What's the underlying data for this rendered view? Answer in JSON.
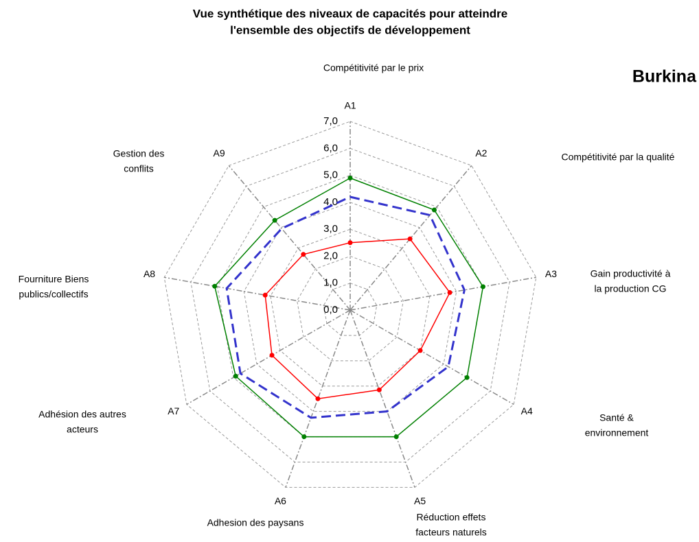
{
  "chart_data": {
    "type": "radar",
    "title": [
      "Vue synthétique des niveaux de capacités pour atteindre",
      "l'ensemble des objectifs de développement"
    ],
    "label": "Burkina",
    "categories": [
      "A1",
      "A2",
      "A3",
      "A4",
      "A5",
      "A6",
      "A7",
      "A8",
      "A9"
    ],
    "axis_titles": [
      [
        "Compétitivité  par le prix"
      ],
      [
        "Compétitivité par la qualité"
      ],
      [
        "Gain productivité à",
        "la production CG"
      ],
      [
        "Santé &",
        "environnement"
      ],
      [
        "Réduction effets",
        "facteurs naturels"
      ],
      [
        "Adhesion des paysans"
      ],
      [
        "Adhésion des autres",
        "acteurs"
      ],
      [
        "Fourniture Biens",
        "publics/collectifs"
      ],
      [
        "Gestion des",
        "conflits"
      ]
    ],
    "ylim": [
      0,
      7
    ],
    "yticks": [
      {
        "value": 0,
        "label": "0,0"
      },
      {
        "value": 1,
        "label": "1,0"
      },
      {
        "value": 2,
        "label": "2,0"
      },
      {
        "value": 3,
        "label": "3,0"
      },
      {
        "value": 4,
        "label": "4,0"
      },
      {
        "value": 5,
        "label": "5,0"
      },
      {
        "value": 6,
        "label": "6,0"
      },
      {
        "value": 7,
        "label": "7,0"
      }
    ],
    "grid": true,
    "series": [
      {
        "color": "#008000",
        "style": "solid",
        "markers": true,
        "values": [
          4.9,
          4.85,
          5.0,
          5.0,
          5.0,
          5.0,
          4.9,
          5.1,
          4.35
        ]
      },
      {
        "color": "#3333cc",
        "style": "dashed",
        "markers": false,
        "values": [
          4.2,
          4.6,
          4.3,
          4.2,
          4.0,
          4.25,
          4.7,
          4.65,
          3.95
        ]
      },
      {
        "color": "#ff0000",
        "style": "solid",
        "markers": true,
        "values": [
          2.5,
          3.45,
          3.75,
          3.0,
          3.15,
          3.5,
          3.35,
          3.2,
          2.7
        ]
      }
    ]
  }
}
